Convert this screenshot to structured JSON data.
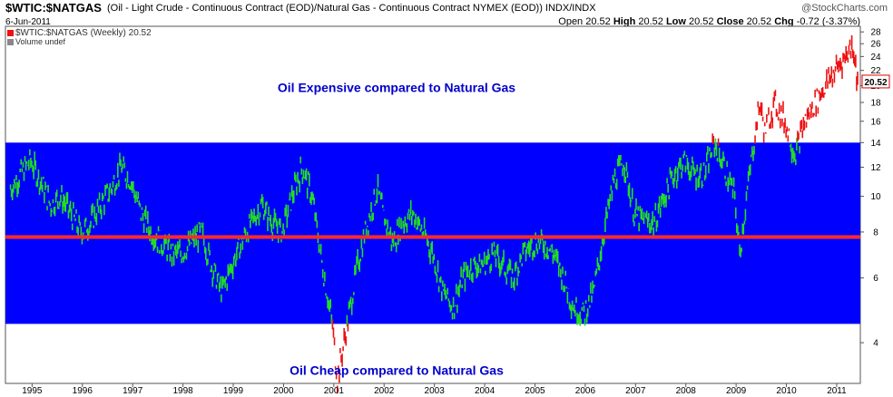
{
  "header": {
    "symbol": "$WTIC:$NATGAS",
    "description": "(Oil - Light Crude - Continuous Contract (EOD)/Natural Gas - Continuous Contract NYMEX (EOD))  INDX/INDX",
    "brand": "@StockCharts.com",
    "date": "6-Jun-2011",
    "open_label": "Open",
    "open": "20.52",
    "high_label": "High",
    "high": "20.52",
    "low_label": "Low",
    "low": "20.52",
    "close_label": "Close",
    "close": "20.52",
    "chg_label": "Chg",
    "chg": "-0.72 (-3.37%)"
  },
  "legend": {
    "price": "$WTIC:$NATGAS (Weekly) 20.52",
    "volume": "Volume undef"
  },
  "colors": {
    "band": "#0000ff",
    "midline": "#ff2a2a",
    "in_band": "#22dd22",
    "out_band": "#ee1111",
    "annotation": "#0000cc",
    "last_price_border": "#dd0000"
  },
  "chart_data": {
    "type": "line",
    "scale": "log",
    "ylim": [
      3.1,
      29
    ],
    "yticks": [
      4,
      6,
      8,
      10,
      12,
      14,
      16,
      18,
      20,
      22,
      24,
      26,
      28
    ],
    "xlim": [
      1994.5,
      2011.5
    ],
    "xticks": [
      "1995",
      "1996",
      "1997",
      "1998",
      "1999",
      "2000",
      "2001",
      "2002",
      "2003",
      "2004",
      "2005",
      "2006",
      "2007",
      "2008",
      "2009",
      "2010",
      "2011"
    ],
    "last_value": "20.52",
    "band": [
      4.5,
      14
    ],
    "midline": 7.75,
    "annotations": {
      "upper": "Oil Expensive compared to Natural Gas",
      "lower": "Oil Cheap compared to Natural Gas"
    },
    "series": [
      {
        "x": [
          1994.6,
          1994.8,
          1995.0,
          1995.2,
          1995.4,
          1995.6,
          1995.8,
          1996.0,
          1996.2,
          1996.4,
          1996.6,
          1996.8,
          1997.0,
          1997.2,
          1997.4,
          1997.6,
          1997.8,
          1998.0,
          1998.2,
          1998.4,
          1998.6,
          1998.8,
          1999.0,
          1999.2,
          1999.4,
          1999.6,
          1999.8,
          2000.0,
          2000.2,
          2000.4,
          2000.6,
          2000.8,
          2001.0,
          2001.1,
          2001.3,
          2001.5,
          2001.7,
          2001.9,
          2002.0,
          2002.2,
          2002.4,
          2002.6,
          2002.8,
          2003.0,
          2003.2,
          2003.4,
          2003.6,
          2003.8,
          2004.0,
          2004.2,
          2004.4,
          2004.6,
          2004.8,
          2005.0,
          2005.2,
          2005.4,
          2005.6,
          2005.8,
          2006.0,
          2006.2,
          2006.4,
          2006.6,
          2006.8,
          2007.0,
          2007.2,
          2007.4,
          2007.6,
          2007.8,
          2008.0,
          2008.2,
          2008.4,
          2008.6,
          2008.8,
          2009.0,
          2009.1,
          2009.2,
          2009.35,
          2009.5,
          2009.6,
          2009.8,
          2010.0,
          2010.2,
          2010.4,
          2010.6,
          2010.8,
          2011.0,
          2011.2,
          2011.35,
          2011.45
        ],
        "y": [
          10.5,
          11.5,
          12.5,
          11.0,
          9.5,
          10.0,
          9.0,
          8.0,
          8.5,
          9.5,
          10.5,
          12.0,
          11.0,
          9.0,
          8.0,
          7.5,
          7.0,
          7.0,
          7.5,
          8.0,
          6.5,
          5.5,
          6.5,
          7.5,
          8.5,
          9.5,
          8.5,
          8.0,
          10.0,
          12.0,
          10.0,
          6.5,
          4.5,
          3.2,
          4.5,
          6.5,
          8.5,
          10.5,
          9.0,
          7.5,
          8.5,
          9.0,
          8.0,
          7.0,
          5.5,
          5.0,
          6.0,
          6.5,
          6.5,
          7.0,
          6.5,
          6.0,
          7.0,
          7.5,
          7.5,
          7.0,
          6.0,
          5.0,
          4.8,
          5.5,
          8.0,
          11.0,
          12.5,
          9.0,
          8.5,
          8.5,
          10.0,
          11.5,
          12.5,
          11.5,
          11.5,
          14.0,
          12.0,
          10.0,
          7.0,
          9.0,
          13.0,
          18.0,
          15.0,
          18.0,
          16.0,
          13.0,
          16.0,
          18.0,
          20.0,
          22.0,
          24.0,
          26.0,
          20.5
        ]
      }
    ]
  }
}
